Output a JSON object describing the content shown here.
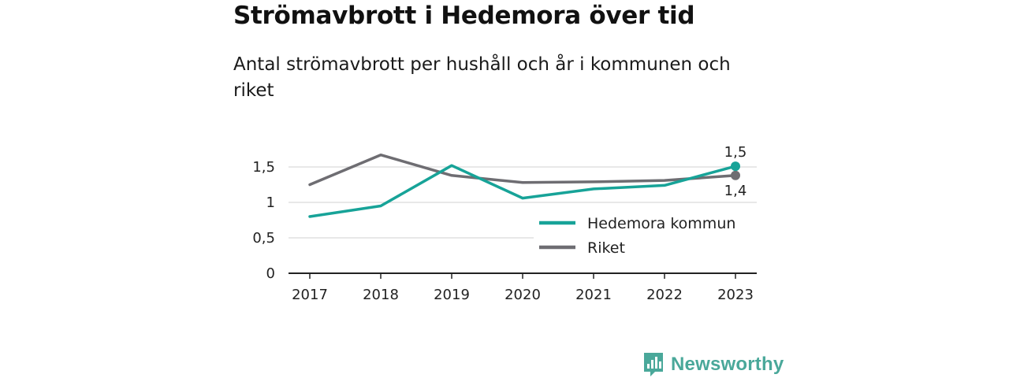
{
  "title": "Strömavbrott i Hedemora över tid",
  "subtitle": "Antal strömavbrott per hushåll och år i kommunen och riket",
  "brand": {
    "name": "Newsworthy",
    "icon": "newsworthy-logo-icon",
    "color": "#4aa89a"
  },
  "colors": {
    "hedemora": "#17a398",
    "riket": "#6e6d72",
    "grid": "#d9d9d9",
    "axis": "#222222"
  },
  "chart_data": {
    "type": "line",
    "x": [
      "2017",
      "2018",
      "2019",
      "2020",
      "2021",
      "2022",
      "2023"
    ],
    "ylim": [
      0,
      1.9
    ],
    "yticks": [
      {
        "value": 0,
        "label": "0"
      },
      {
        "value": 0.5,
        "label": "0,5"
      },
      {
        "value": 1,
        "label": "1"
      },
      {
        "value": 1.5,
        "label": "1,5"
      }
    ],
    "grid": true,
    "legend_position": "center-right",
    "series": [
      {
        "name": "Hedemora kommun",
        "color": "#17a398",
        "values": [
          0.8,
          0.95,
          1.52,
          1.06,
          1.19,
          1.24,
          1.51
        ],
        "end_label": "1,5",
        "end_label_position": "above"
      },
      {
        "name": "Riket",
        "color": "#6e6d72",
        "values": [
          1.25,
          1.67,
          1.38,
          1.28,
          1.29,
          1.31,
          1.38
        ],
        "end_label": "1,4",
        "end_label_position": "below"
      }
    ]
  }
}
